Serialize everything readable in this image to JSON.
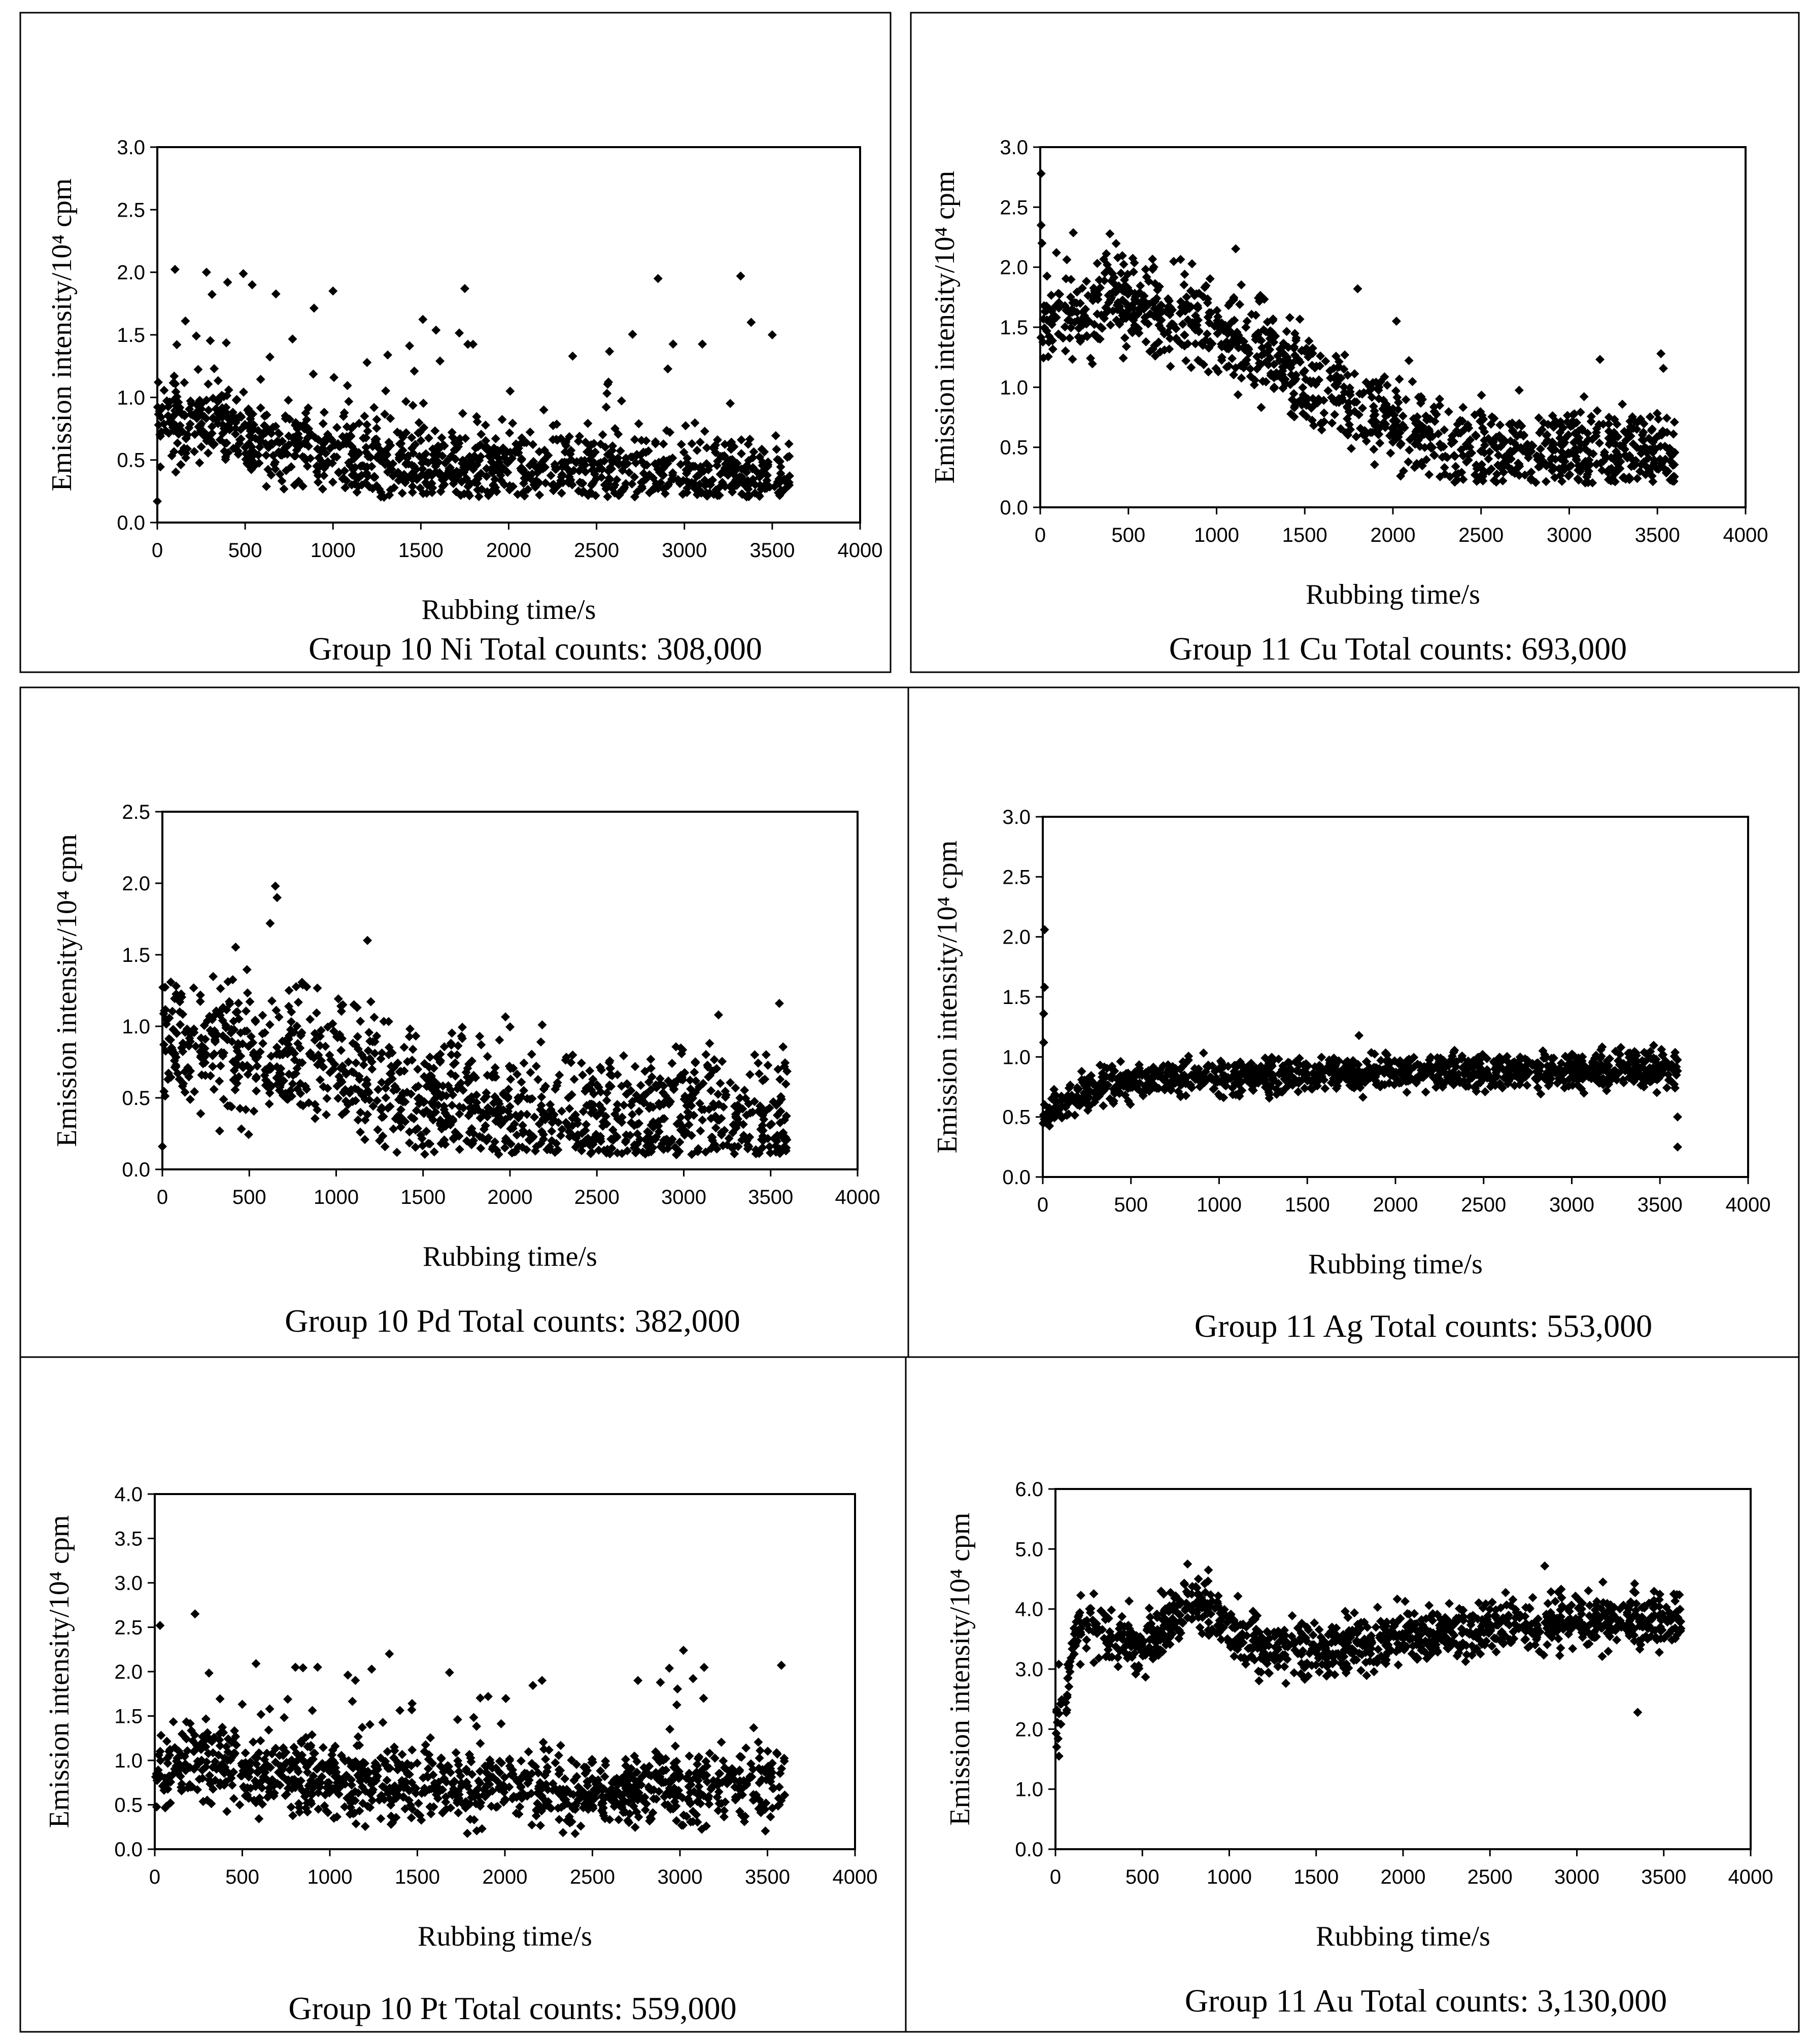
{
  "figure": {
    "panels": [
      {
        "id": "ni",
        "caption": "Group 10 Ni Total counts: 308,000"
      },
      {
        "id": "cu",
        "caption": "Group 11 Cu Total counts: 693,000"
      },
      {
        "id": "pd",
        "caption": "Group 10 Pd Total counts: 382,000"
      },
      {
        "id": "ag",
        "caption": "Group 11 Ag  Total counts: 553,000"
      },
      {
        "id": "pt",
        "caption": "Group 10 Pt Total counts: 559,000"
      },
      {
        "id": "au",
        "caption": "Group 11 Au Total counts: 3,130,000"
      }
    ]
  },
  "chart_data": [
    {
      "id": "ni",
      "type": "scatter",
      "title": "Group 10 Ni Total counts: 308,000",
      "xlabel": "Rubbing time/s",
      "ylabel": "Emission intensity/10⁴ cpm",
      "xlim": [
        0,
        4000
      ],
      "ylim": [
        0,
        3
      ],
      "xticks": [
        "0",
        "500",
        "1000",
        "1500",
        "2000",
        "2500",
        "3000",
        "3500",
        "4000"
      ],
      "yticks": [
        "0.0",
        "0.5",
        "1.0",
        "1.5",
        "2.0",
        "2.5",
        "3.0"
      ],
      "trend": {
        "x": [
          0,
          300,
          700,
          1200,
          1800,
          2500,
          3000,
          3600
        ],
        "y": [
          0.85,
          0.78,
          0.6,
          0.52,
          0.48,
          0.42,
          0.4,
          0.35
        ]
      },
      "spread": 0.2,
      "spike_rate": 0.06,
      "spike_max": 1.1,
      "ymin_clip": 0.2,
      "outliers": [
        {
          "x": 0,
          "y": 0.17
        },
        {
          "x": 280,
          "y": 2.0
        },
        {
          "x": 400,
          "y": 1.92
        },
        {
          "x": 540,
          "y": 1.9
        },
        {
          "x": 1000,
          "y": 1.85
        },
        {
          "x": 1750,
          "y": 1.87
        },
        {
          "x": 2850,
          "y": 1.95
        },
        {
          "x": 3320,
          "y": 1.97
        },
        {
          "x": 3380,
          "y": 1.6
        },
        {
          "x": 3500,
          "y": 1.5
        }
      ]
    },
    {
      "id": "cu",
      "type": "scatter",
      "title": "Group 11 Cu Total counts: 693,000",
      "xlabel": "Rubbing time/s",
      "ylabel": "Emission intensity/10⁴ cpm",
      "xlim": [
        0,
        4000
      ],
      "ylim": [
        0,
        3
      ],
      "xticks": [
        "0",
        "500",
        "1000",
        "1500",
        "2000",
        "2500",
        "3000",
        "3500",
        "4000"
      ],
      "yticks": [
        "0.0",
        "0.5",
        "1.0",
        "1.5",
        "2.0",
        "2.5",
        "3.0"
      ],
      "trend": {
        "x": [
          0,
          200,
          400,
          700,
          1000,
          1300,
          1600,
          1900,
          2200,
          2600,
          3000,
          3600
        ],
        "y": [
          1.55,
          1.6,
          1.75,
          1.6,
          1.45,
          1.25,
          1.0,
          0.75,
          0.6,
          0.5,
          0.45,
          0.45
        ]
      },
      "spread": 0.22,
      "spike_rate": 0.03,
      "spike_max": 0.5,
      "ymin_clip": 0.2,
      "outliers": [
        {
          "x": 5,
          "y": 2.78
        },
        {
          "x": 5,
          "y": 2.35
        },
        {
          "x": 10,
          "y": 2.2
        },
        {
          "x": 380,
          "y": 2.02
        },
        {
          "x": 1800,
          "y": 1.82
        },
        {
          "x": 2020,
          "y": 1.55
        },
        {
          "x": 3520,
          "y": 1.28
        }
      ]
    },
    {
      "id": "pd",
      "type": "scatter",
      "title": "Group 10 Pd Total counts: 382,000",
      "xlabel": "Rubbing time/s",
      "ylabel": "Emission intensity/10⁴ cpm",
      "xlim": [
        0,
        4000
      ],
      "ylim": [
        0,
        2.5
      ],
      "xticks": [
        "0",
        "500",
        "1000",
        "1500",
        "2000",
        "2500",
        "3000",
        "3500",
        "4000"
      ],
      "yticks": [
        "0.0",
        "0.5",
        "1.0",
        "1.5",
        "2.0",
        "2.5"
      ],
      "trend": {
        "x": [
          0,
          300,
          600,
          900,
          1200,
          1500,
          1800,
          2100,
          2500,
          3000,
          3600
        ],
        "y": [
          0.9,
          0.85,
          0.8,
          0.75,
          0.65,
          0.5,
          0.4,
          0.35,
          0.35,
          0.33,
          0.3
        ]
      },
      "spread": 0.28,
      "spike_rate": 0.04,
      "spike_max": 0.5,
      "ymin_clip": 0.1,
      "outliers": [
        {
          "x": 0,
          "y": 0.16
        },
        {
          "x": 650,
          "y": 1.98
        },
        {
          "x": 660,
          "y": 1.9
        },
        {
          "x": 620,
          "y": 1.72
        },
        {
          "x": 1180,
          "y": 1.6
        },
        {
          "x": 3550,
          "y": 1.16
        },
        {
          "x": 3200,
          "y": 1.08
        }
      ]
    },
    {
      "id": "ag",
      "type": "scatter",
      "title": "Group 11 Ag  Total counts: 553,000",
      "xlabel": "Rubbing time/s",
      "ylabel": "Emission intensity/10⁴ cpm",
      "xlim": [
        0,
        4000
      ],
      "ylim": [
        0,
        3
      ],
      "xticks": [
        "0",
        "500",
        "1000",
        "1500",
        "2000",
        "2500",
        "3000",
        "3500",
        "4000"
      ],
      "yticks": [
        "0.0",
        "0.5",
        "1.0",
        "1.5",
        "2.0",
        "2.5",
        "3.0"
      ],
      "trend": {
        "x": [
          0,
          100,
          200,
          400,
          800,
          1500,
          2500,
          3600
        ],
        "y": [
          0.45,
          0.6,
          0.7,
          0.77,
          0.83,
          0.86,
          0.88,
          0.9
        ]
      },
      "spread": 0.09,
      "spike_rate": 0.01,
      "spike_max": 0.2,
      "ymin_clip": 0.3,
      "outliers": [
        {
          "x": 10,
          "y": 2.06
        },
        {
          "x": 10,
          "y": 1.58
        },
        {
          "x": 5,
          "y": 1.36
        },
        {
          "x": 5,
          "y": 1.12
        },
        {
          "x": 3600,
          "y": 0.25
        },
        {
          "x": 3600,
          "y": 0.5
        }
      ]
    },
    {
      "id": "pt",
      "type": "scatter",
      "title": "Group 10 Pt Total counts: 559,000",
      "xlabel": "Rubbing time/s",
      "ylabel": "Emission intensity/10⁴ cpm",
      "xlim": [
        0,
        4000
      ],
      "ylim": [
        0,
        4
      ],
      "xticks": [
        "0",
        "500",
        "1000",
        "1500",
        "2000",
        "2500",
        "3000",
        "3500",
        "4000"
      ],
      "yticks": [
        "0.0",
        "0.5",
        "1.0",
        "1.5",
        "2.0",
        "2.5",
        "3.0",
        "3.5",
        "4.0"
      ],
      "trend": {
        "x": [
          0,
          200,
          500,
          1000,
          1500,
          2000,
          2500,
          3000,
          3600
        ],
        "y": [
          0.8,
          1.0,
          0.85,
          0.78,
          0.72,
          0.65,
          0.62,
          0.7,
          0.72
        ]
      },
      "spread": 0.25,
      "spike_rate": 0.06,
      "spike_max": 1.1,
      "ymin_clip": 0.15,
      "outliers": [
        {
          "x": 30,
          "y": 2.52
        },
        {
          "x": 230,
          "y": 2.65
        },
        {
          "x": 1340,
          "y": 2.2
        },
        {
          "x": 3020,
          "y": 2.24
        },
        {
          "x": 930,
          "y": 2.05
        },
        {
          "x": 2760,
          "y": 1.9
        }
      ]
    },
    {
      "id": "au",
      "type": "scatter",
      "title": "Group 11 Au Total counts: 3,130,000",
      "xlabel": "Rubbing time/s",
      "ylabel": "Emission intensity/10⁴ cpm",
      "xlim": [
        0,
        4000
      ],
      "ylim": [
        0,
        6
      ],
      "xticks": [
        "0",
        "500",
        "1000",
        "1500",
        "2000",
        "2500",
        "3000",
        "3500",
        "4000"
      ],
      "yticks": [
        "0.0",
        "1.0",
        "2.0",
        "3.0",
        "4.0",
        "5.0",
        "6.0"
      ],
      "trend": {
        "x": [
          0,
          50,
          100,
          150,
          300,
          500,
          700,
          850,
          1000,
          1200,
          1500,
          2000,
          2500,
          3000,
          3600
        ],
        "y": [
          1.9,
          2.3,
          3.3,
          3.7,
          3.6,
          3.4,
          4.0,
          4.1,
          3.6,
          3.3,
          3.3,
          3.5,
          3.7,
          3.8,
          3.8
        ]
      },
      "spread": 0.28,
      "spike_rate": 0.02,
      "spike_max": 0.6,
      "ymin_clip": 1.5,
      "outliers": [
        {
          "x": 760,
          "y": 4.75
        },
        {
          "x": 880,
          "y": 4.65
        },
        {
          "x": 3350,
          "y": 2.28
        },
        {
          "x": 20,
          "y": 1.55
        },
        {
          "x": 3150,
          "y": 4.45
        }
      ]
    }
  ]
}
